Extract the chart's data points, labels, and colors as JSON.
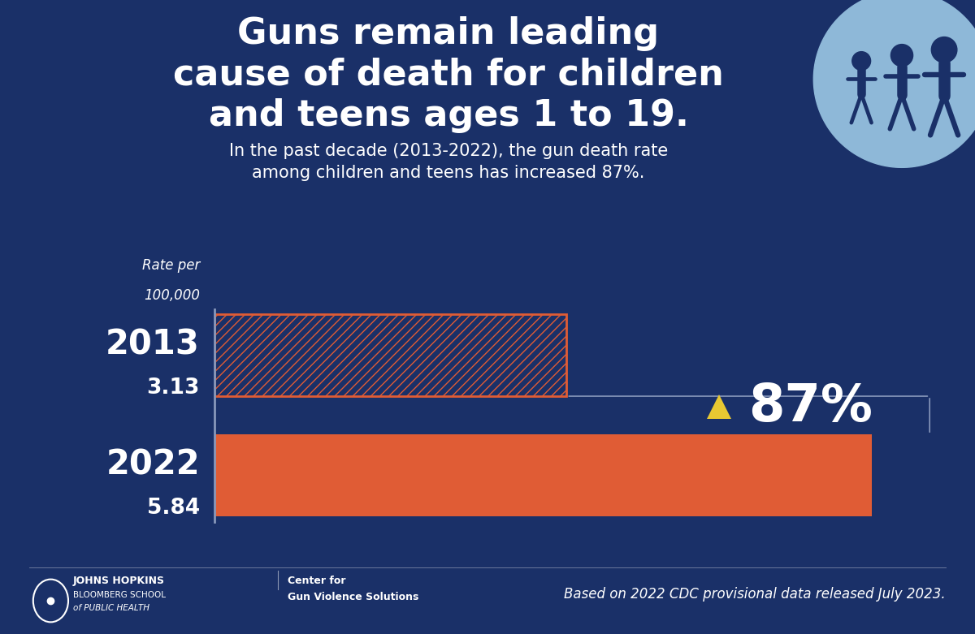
{
  "bg_color": "#1a3068",
  "title_line1": "Guns remain leading",
  "title_line2": "cause of death for children",
  "title_line3": "and teens ages 1 to 19.",
  "subtitle_line1": "In the past decade (2013-2022), the gun death rate",
  "subtitle_line2": "among children and teens has increased 87%.",
  "bar_2013_value": 3.13,
  "bar_2022_value": 5.84,
  "bar_color_solid": "#e05c35",
  "bar_color_hatch_face": "#1a3068",
  "bar_color_hatch_edge": "#e05c35",
  "hatch_pattern": "///",
  "year_2013_label": "2013",
  "year_2022_label": "2022",
  "value_2013_label": "3.13",
  "value_2022_label": "5.84",
  "rate_label_line1": "Rate per",
  "rate_label_line2": "100,000",
  "pct_increase": "87%",
  "triangle_color": "#e8c832",
  "axis_line_color": "#8898bb",
  "text_color": "#ffffff",
  "light_blue_circle_color": "#8eb8d8",
  "footer_text": "Based on 2022 CDC provisional data released July 2023.",
  "jh_label_line1": "JOHNS HOPKINS",
  "jh_label_line2": "BLOOMBERG SCHOOL",
  "jh_label_line3": "of PUBLIC HEALTH",
  "center_label_line1": "Center for",
  "center_label_line2": "Gun Violence Solutions",
  "max_val": 6.5
}
